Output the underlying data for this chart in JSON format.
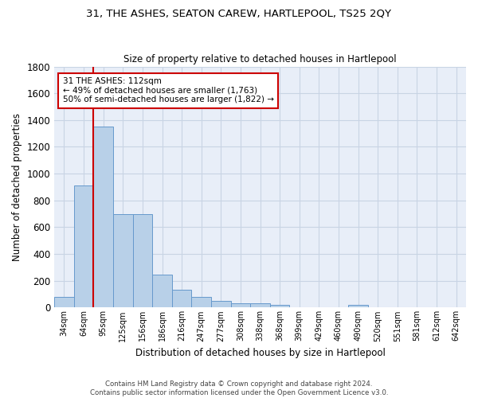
{
  "title": "31, THE ASHES, SEATON CAREW, HARTLEPOOL, TS25 2QY",
  "subtitle": "Size of property relative to detached houses in Hartlepool",
  "xlabel": "Distribution of detached houses by size in Hartlepool",
  "ylabel": "Number of detached properties",
  "categories": [
    "34sqm",
    "64sqm",
    "95sqm",
    "125sqm",
    "156sqm",
    "186sqm",
    "216sqm",
    "247sqm",
    "277sqm",
    "308sqm",
    "338sqm",
    "368sqm",
    "399sqm",
    "429sqm",
    "460sqm",
    "490sqm",
    "520sqm",
    "551sqm",
    "581sqm",
    "612sqm",
    "642sqm"
  ],
  "values": [
    80,
    910,
    1350,
    700,
    700,
    245,
    135,
    80,
    50,
    30,
    30,
    20,
    0,
    0,
    0,
    20,
    0,
    0,
    0,
    0,
    0
  ],
  "bar_color": "#b8d0e8",
  "bar_edgecolor": "#6699cc",
  "vline_color": "#cc0000",
  "annotation_text": "31 THE ASHES: 112sqm\n← 49% of detached houses are smaller (1,763)\n50% of semi-detached houses are larger (1,822) →",
  "annotation_box_color": "#cc0000",
  "ylim": [
    0,
    1800
  ],
  "yticks": [
    0,
    200,
    400,
    600,
    800,
    1000,
    1200,
    1400,
    1600,
    1800
  ],
  "grid_color": "#c8d4e4",
  "bg_color": "#e8eef8",
  "footer1": "Contains HM Land Registry data © Crown copyright and database right 2024.",
  "footer2": "Contains public sector information licensed under the Open Government Licence v3.0."
}
